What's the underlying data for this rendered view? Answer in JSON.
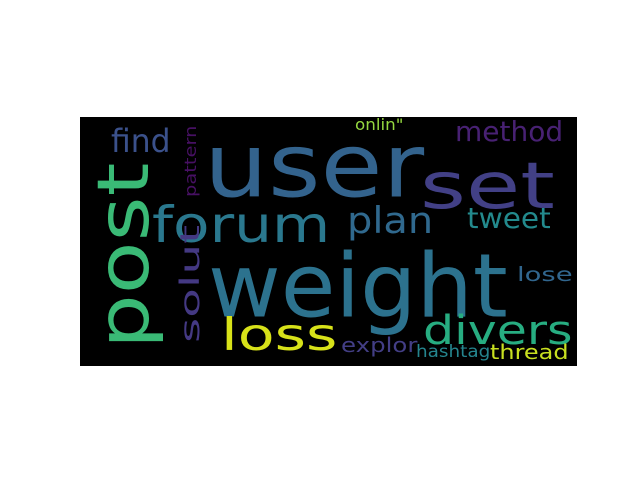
{
  "wordcloud": {
    "background": "#000000",
    "words": [
      {
        "text": "user",
        "color": "#33638d"
      },
      {
        "text": "weight",
        "color": "#2c728e"
      },
      {
        "text": "set",
        "color": "#424086"
      },
      {
        "text": "post",
        "color": "#3aba76"
      },
      {
        "text": "forum",
        "color": "#2a788e"
      },
      {
        "text": "loss",
        "color": "#d8e219"
      },
      {
        "text": "plan",
        "color": "#30698e"
      },
      {
        "text": "divers",
        "color": "#27ad81"
      },
      {
        "text": "tweet",
        "color": "#238a8d"
      },
      {
        "text": "method",
        "color": "#482173"
      },
      {
        "text": "find",
        "color": "#3b518b"
      },
      {
        "text": "solut",
        "color": "#443983"
      },
      {
        "text": "thread",
        "color": "#c8e020"
      },
      {
        "text": "explor",
        "color": "#433e85"
      },
      {
        "text": "hashtag",
        "color": "#25858e"
      },
      {
        "text": "lose",
        "color": "#31668e"
      },
      {
        "text": "pattern",
        "color": "#471063"
      },
      {
        "text": "onlin\"",
        "color": "#95d840"
      }
    ]
  }
}
